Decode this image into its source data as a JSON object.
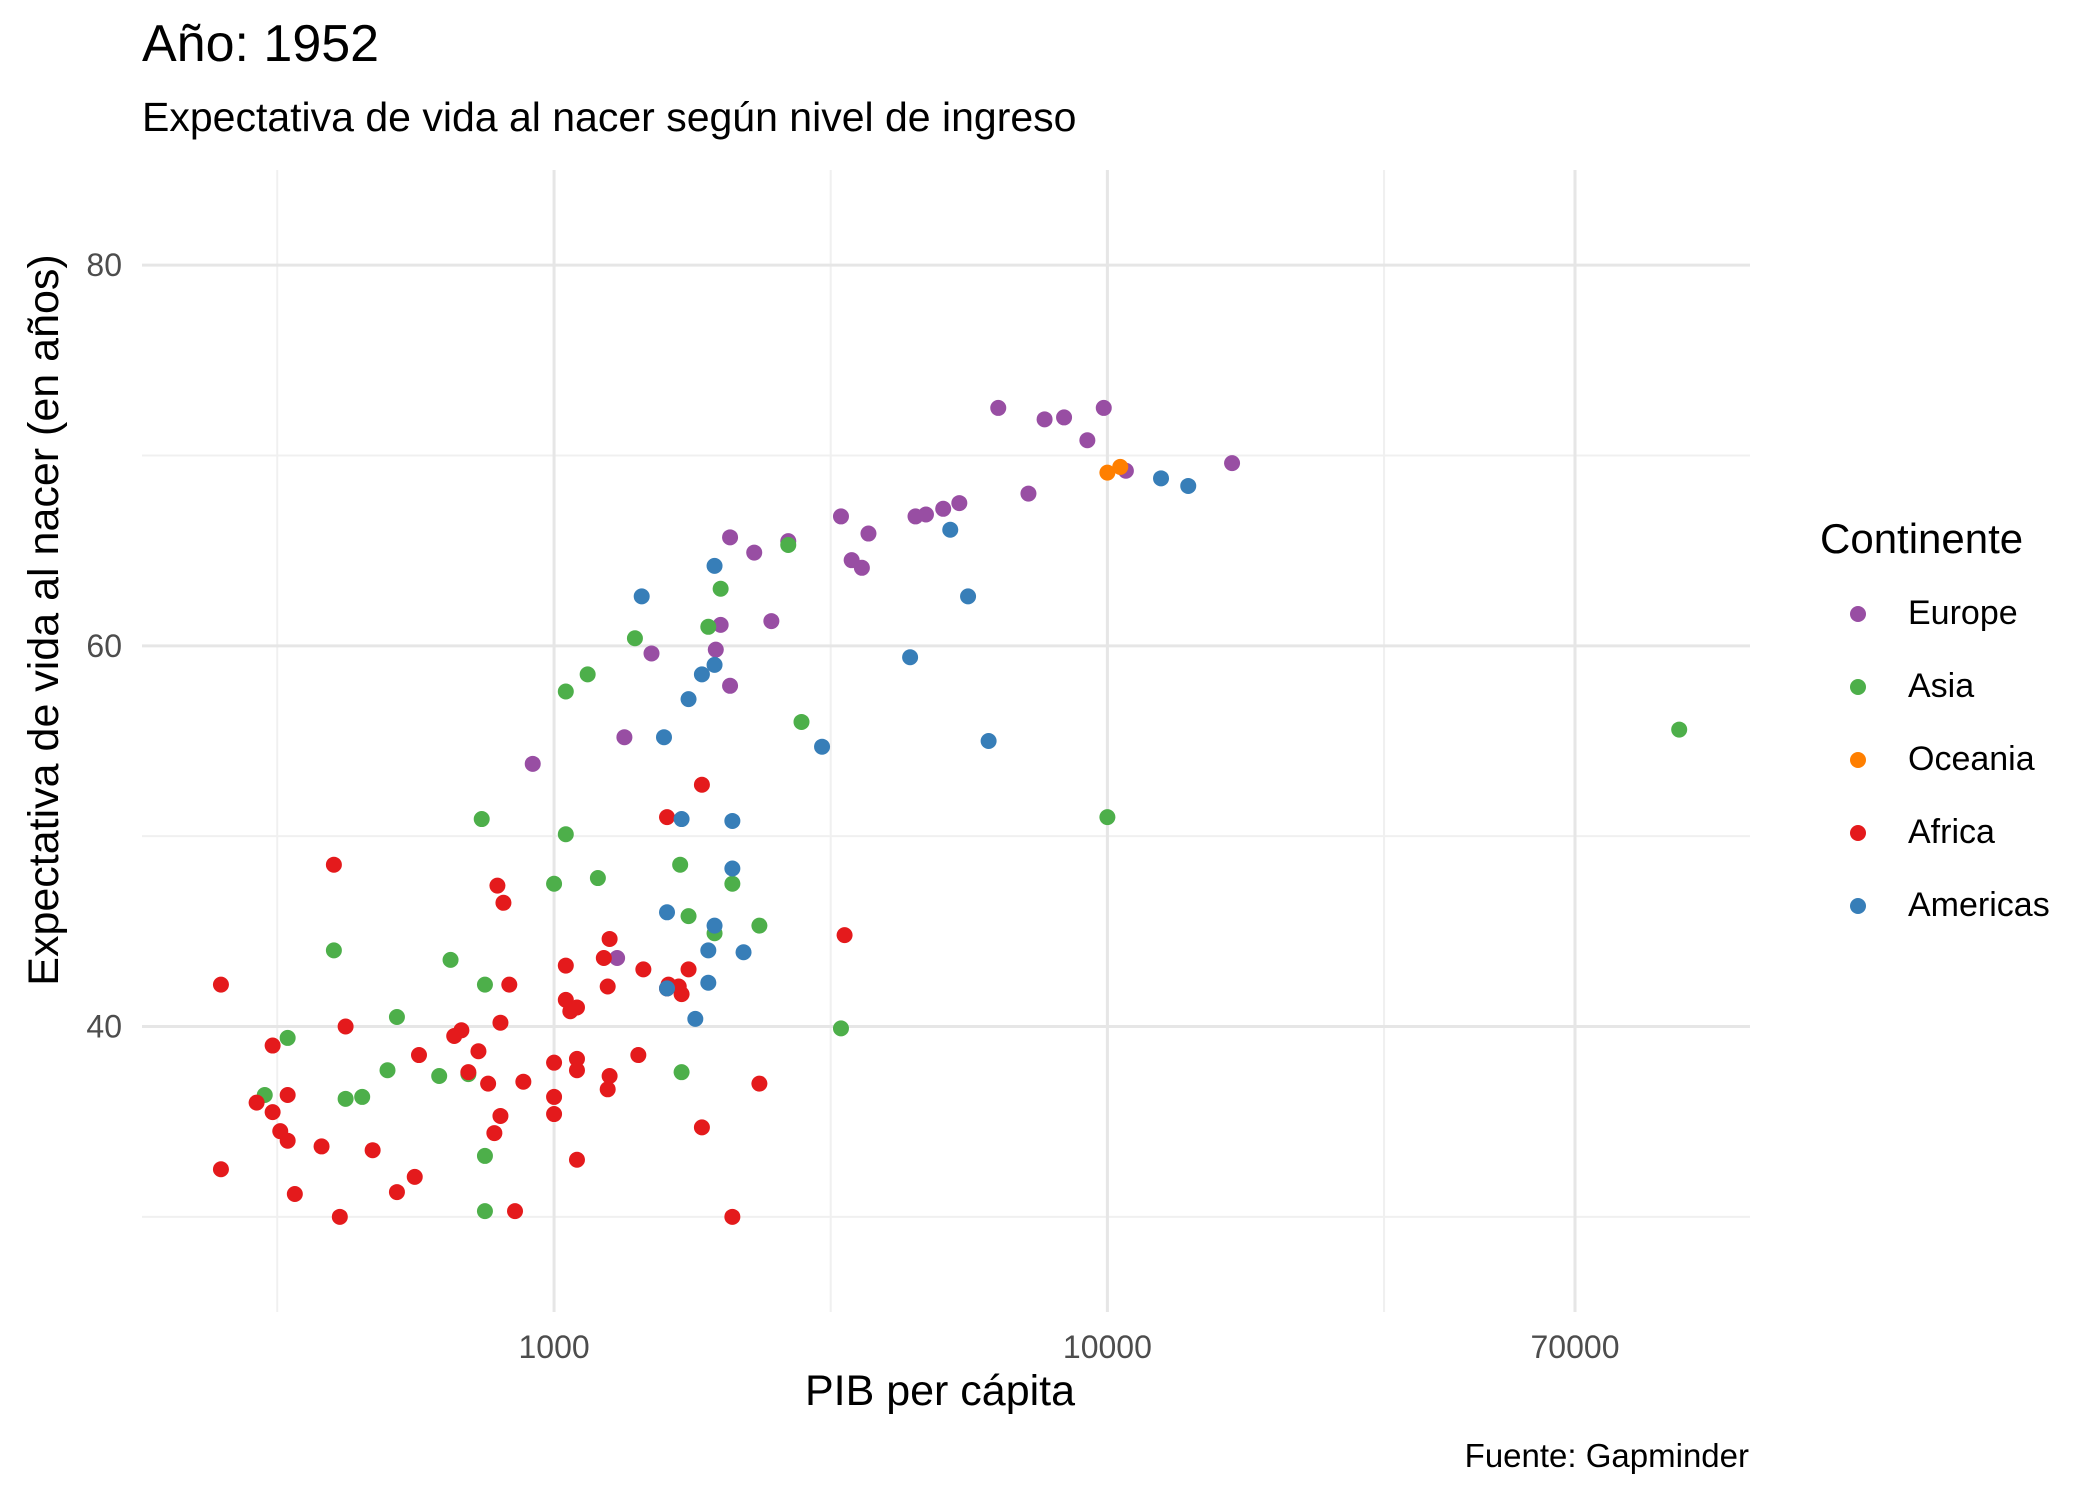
{
  "chart_data": {
    "type": "scatter",
    "title": "Año: 1952",
    "subtitle": "Expectativa de vida al nacer según nivel de ingreso",
    "xlabel": "PIB per cápita",
    "ylabel": "Expectativa de vida al nacer (en años)",
    "caption": "Fuente: Gapminder",
    "x_scale": "log10",
    "xlim": [
      180,
      145000
    ],
    "ylim": [
      25,
      85
    ],
    "x_ticks": [
      1000,
      10000,
      70000
    ],
    "x_tick_labels": [
      "1000",
      "10000",
      "70000"
    ],
    "x_minor": [
      316,
      3162,
      31623
    ],
    "y_ticks": [
      40,
      60,
      80
    ],
    "y_tick_labels": [
      "40",
      "60",
      "80"
    ],
    "y_minor": [
      30,
      50,
      70
    ],
    "grid": true,
    "legend_title": "Continente",
    "legend_position": "right",
    "series": [
      {
        "name": "Europe",
        "color": "#984EA3",
        "points": [
          [
            6350,
            72.5
          ],
          [
            7700,
            71.9
          ],
          [
            8350,
            72.0
          ],
          [
            9850,
            72.5
          ],
          [
            9200,
            70.8
          ],
          [
            10800,
            69.2
          ],
          [
            16800,
            69.6
          ],
          [
            7200,
            68.0
          ],
          [
            5400,
            67.5
          ],
          [
            5050,
            67.2
          ],
          [
            4700,
            66.9
          ],
          [
            4500,
            66.8
          ],
          [
            3700,
            65.9
          ],
          [
            2650,
            65.5
          ],
          [
            2080,
            65.7
          ],
          [
            3300,
            66.8
          ],
          [
            2300,
            64.9
          ],
          [
            3450,
            64.5
          ],
          [
            3600,
            64.1
          ],
          [
            2470,
            61.3
          ],
          [
            2000,
            61.1
          ],
          [
            1960,
            59.8
          ],
          [
            1500,
            59.6
          ],
          [
            2080,
            57.9
          ],
          [
            915,
            53.8
          ],
          [
            1340,
            55.2
          ],
          [
            1300,
            43.6
          ]
        ]
      },
      {
        "name": "Asia",
        "color": "#4DAF4A",
        "points": [
          [
            108000,
            55.6
          ],
          [
            2000,
            63.0
          ],
          [
            2650,
            65.3
          ],
          [
            1900,
            61.0
          ],
          [
            1400,
            60.4
          ],
          [
            1150,
            58.5
          ],
          [
            1050,
            57.6
          ],
          [
            2800,
            56.0
          ],
          [
            10000,
            51.0
          ],
          [
            740,
            50.9
          ],
          [
            1050,
            50.1
          ],
          [
            1200,
            47.8
          ],
          [
            2100,
            47.5
          ],
          [
            1690,
            48.5
          ],
          [
            1000,
            47.5
          ],
          [
            1750,
            45.8
          ],
          [
            2350,
            45.3
          ],
          [
            1950,
            44.9
          ],
          [
            750,
            42.2
          ],
          [
            650,
            43.5
          ],
          [
            400,
            44.0
          ],
          [
            520,
            40.5
          ],
          [
            500,
            37.7
          ],
          [
            620,
            37.4
          ],
          [
            700,
            37.5
          ],
          [
            3300,
            39.9
          ],
          [
            1700,
            37.6
          ],
          [
            450,
            36.3
          ],
          [
            420,
            36.2
          ],
          [
            750,
            33.2
          ],
          [
            750,
            30.3
          ],
          [
            330,
            39.4
          ],
          [
            300,
            36.4
          ]
        ]
      },
      {
        "name": "Oceania",
        "color": "#FF7F00",
        "points": [
          [
            10550,
            69.4
          ],
          [
            10000,
            69.1
          ]
        ]
      },
      {
        "name": "Africa",
        "color": "#E41A1C",
        "points": [
          [
            250,
            42.2
          ],
          [
            400,
            48.5
          ],
          [
            790,
            47.4
          ],
          [
            810,
            46.5
          ],
          [
            1050,
            43.2
          ],
          [
            1260,
            44.6
          ],
          [
            1230,
            43.6
          ],
          [
            1450,
            43.0
          ],
          [
            1250,
            42.1
          ],
          [
            1070,
            40.8
          ],
          [
            830,
            42.2
          ],
          [
            1050,
            41.4
          ],
          [
            1100,
            41.0
          ],
          [
            800,
            40.2
          ],
          [
            680,
            39.8
          ],
          [
            660,
            39.5
          ],
          [
            700,
            37.6
          ],
          [
            730,
            38.7
          ],
          [
            420,
            40.0
          ],
          [
            570,
            38.5
          ],
          [
            760,
            37.0
          ],
          [
            1000,
            38.1
          ],
          [
            1100,
            38.3
          ],
          [
            1100,
            37.7
          ],
          [
            1260,
            37.4
          ],
          [
            1250,
            36.7
          ],
          [
            1000,
            36.3
          ],
          [
            1000,
            35.4
          ],
          [
            1420,
            38.5
          ],
          [
            1610,
            42.2
          ],
          [
            1680,
            42.1
          ],
          [
            1750,
            43.0
          ],
          [
            1700,
            41.7
          ],
          [
            1600,
            42.0
          ],
          [
            3350,
            44.8
          ],
          [
            2350,
            37.0
          ],
          [
            1600,
            51.0
          ],
          [
            1850,
            52.7
          ],
          [
            1850,
            34.7
          ],
          [
            2100,
            30.0
          ],
          [
            1100,
            33.0
          ],
          [
            560,
            32.1
          ],
          [
            520,
            31.3
          ],
          [
            410,
            30.0
          ],
          [
            340,
            31.2
          ],
          [
            470,
            33.5
          ],
          [
            380,
            33.7
          ],
          [
            330,
            34.0
          ],
          [
            320,
            34.5
          ],
          [
            310,
            35.5
          ],
          [
            290,
            36.0
          ],
          [
            330,
            36.4
          ],
          [
            310,
            39.0
          ],
          [
            250,
            32.5
          ],
          [
            850,
            30.3
          ],
          [
            800,
            35.3
          ],
          [
            780,
            34.4
          ],
          [
            880,
            37.1
          ]
        ]
      },
      {
        "name": "Americas",
        "color": "#377EB8",
        "points": [
          [
            14000,
            68.4
          ],
          [
            12500,
            68.8
          ],
          [
            5200,
            66.1
          ],
          [
            5600,
            62.6
          ],
          [
            4400,
            59.4
          ],
          [
            6100,
            55.0
          ],
          [
            3050,
            54.7
          ],
          [
            2100,
            50.8
          ],
          [
            1700,
            50.9
          ],
          [
            2100,
            48.3
          ],
          [
            1600,
            46.0
          ],
          [
            1950,
            45.3
          ],
          [
            2200,
            43.9
          ],
          [
            1900,
            42.3
          ],
          [
            1600,
            42.0
          ],
          [
            1800,
            40.4
          ],
          [
            1440,
            62.6
          ],
          [
            1950,
            64.2
          ],
          [
            1850,
            58.5
          ],
          [
            1950,
            59.0
          ],
          [
            1750,
            57.2
          ],
          [
            1580,
            55.2
          ],
          [
            1900,
            44.0
          ]
        ]
      }
    ]
  }
}
